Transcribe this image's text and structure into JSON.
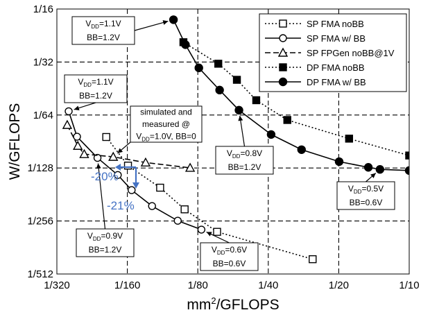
{
  "chart_data": {
    "type": "line",
    "xlabel": "mm²/GFLOPS",
    "ylabel": "W/GFLOPS",
    "x_scale": "log2",
    "y_scale": "log2",
    "xlim": [
      0.003125,
      0.1
    ],
    "ylim": [
      0.001953125,
      0.0625
    ],
    "x_ticks": [
      {
        "value": 0.003125,
        "label": "1/320"
      },
      {
        "value": 0.00625,
        "label": "1/160"
      },
      {
        "value": 0.0125,
        "label": "1/80"
      },
      {
        "value": 0.025,
        "label": "1/40"
      },
      {
        "value": 0.05,
        "label": "1/20"
      },
      {
        "value": 0.1,
        "label": "1/10"
      }
    ],
    "y_ticks": [
      {
        "value": 0.0625,
        "label": "1/16"
      },
      {
        "value": 0.03125,
        "label": "1/32"
      },
      {
        "value": 0.015625,
        "label": "1/64"
      },
      {
        "value": 0.0078125,
        "label": "1/128"
      },
      {
        "value": 0.00390625,
        "label": "1/256"
      },
      {
        "value": 0.001953125,
        "label": "1/512"
      }
    ],
    "grid": "dashed",
    "legend_position": "top-right",
    "series": [
      {
        "name": "SP FMA noBB",
        "line": "dotted",
        "marker": "square-open",
        "points": [
          [
            0.00508,
            0.01172
          ],
          [
            0.00629,
            0.00806
          ],
          [
            0.00863,
            0.00604
          ],
          [
            0.01098,
            0.00455
          ],
          [
            0.01511,
            0.00339
          ],
          [
            0.03868,
            0.00237
          ]
        ]
      },
      {
        "name": "SP FMA w/ BB",
        "line": "solid",
        "marker": "circle-open",
        "points": [
          [
            0.00351,
            0.01641
          ],
          [
            0.00381,
            0.01177
          ],
          [
            0.00466,
            0.00892
          ],
          [
            0.00569,
            0.00713
          ],
          [
            0.00652,
            0.00585
          ],
          [
            0.00797,
            0.00475
          ],
          [
            0.01026,
            0.00392
          ],
          [
            0.01295,
            0.00349
          ]
        ]
      },
      {
        "name": "SP FPGen noBB@1V",
        "line": "dashed",
        "marker": "triangle-open",
        "points": [
          [
            0.00346,
            0.01372
          ],
          [
            0.00384,
            0.01044
          ],
          [
            0.00409,
            0.00937
          ],
          [
            0.00544,
            0.00904
          ],
          [
            0.00748,
            0.00839
          ],
          [
            0.01159,
            0.00783
          ]
        ]
      },
      {
        "name": "DP FMA noBB",
        "line": "dotted",
        "marker": "square-filled",
        "points": [
          [
            0.01085,
            0.04049
          ],
          [
            0.01529,
            0.03056
          ],
          [
            0.01836,
            0.02476
          ],
          [
            0.02221,
            0.01896
          ],
          [
            0.03015,
            0.01464
          ],
          [
            0.05536,
            0.01147
          ],
          [
            0.1,
            0.0092
          ]
        ]
      },
      {
        "name": "DP FMA w/ BB",
        "line": "solid",
        "marker": "circle-filled",
        "points": [
          [
            0.00984,
            0.05434
          ],
          [
            0.01107,
            0.0392
          ],
          [
            0.01263,
            0.02894
          ],
          [
            0.01549,
            0.02165
          ],
          [
            0.01874,
            0.01664
          ],
          [
            0.02571,
            0.01211
          ],
          [
            0.03468,
            0.00993
          ],
          [
            0.05019,
            0.00849
          ],
          [
            0.0669,
            0.00788
          ],
          [
            0.075,
            0.00767
          ],
          [
            0.1,
            0.00756
          ]
        ]
      }
    ],
    "annotations": [
      {
        "lines": [
          "V<sub>DD</sub>=1.1V",
          "BB=1.2V"
        ],
        "target_series": 4,
        "target_point": 0
      },
      {
        "lines": [
          "V<sub>DD</sub>=1.1V",
          "BB=1.2V"
        ],
        "target_series": 1,
        "target_point": 0
      },
      {
        "lines": [
          "simulated and",
          "measured @",
          "V<sub>DD</sub>=1.0V, BB=0"
        ],
        "target_series": 2,
        "target_point": 3
      },
      {
        "lines": [
          "V<sub>DD</sub>=0.8V",
          "BB=1.2V"
        ],
        "target_series": 4,
        "target_point": 4
      },
      {
        "lines": [
          "V<sub>DD</sub>=0.5V",
          "BB=0.6V"
        ],
        "target_series": 4,
        "target_point": 9
      },
      {
        "lines": [
          "V<sub>DD</sub>=0.9V",
          "BB=1.2V"
        ],
        "target_series": 1,
        "target_point": 2
      },
      {
        "lines": [
          "V<sub>DD</sub>=0.6V",
          "BB=0.6V"
        ],
        "target_series": 1,
        "target_point": 7
      }
    ],
    "improvement_labels": [
      {
        "text": "-20%",
        "direction": "x"
      },
      {
        "text": "-21%",
        "direction": "y"
      }
    ]
  }
}
